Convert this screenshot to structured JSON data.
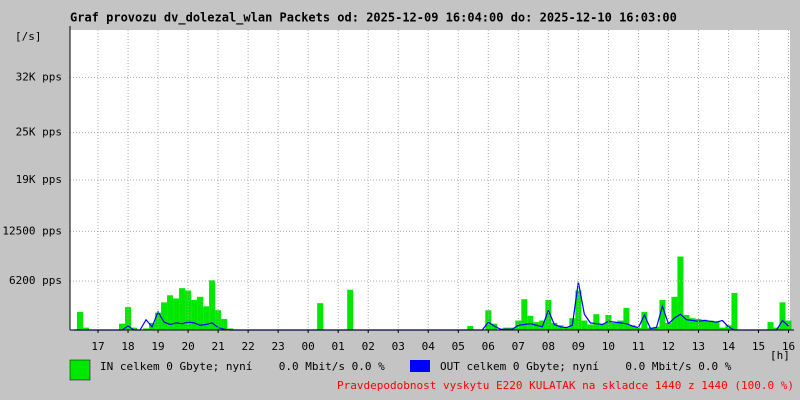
{
  "chart_data": {
    "type": "area",
    "title": "Graf provozu dv_dolezal_wlan Packets od: 2025-12-09 16:04:00 do: 2025-12-10 16:03:00",
    "ylabel": "[/s]",
    "xlabel": "[h]",
    "footnote": "Pravdepodobnost vyskytu E220 KULATAK na skladce 1440 z 1440 (100.0 %)",
    "grid": true,
    "xlim": [
      16.0667,
      40.05
    ],
    "ylim": [
      0,
      38000
    ],
    "yticks": [
      {
        "value": 6200,
        "label": "6200 pps"
      },
      {
        "value": 12500,
        "label": "12500 pps"
      },
      {
        "value": 19000,
        "label": "19K pps"
      },
      {
        "value": 25000,
        "label": "25K pps"
      },
      {
        "value": 32000,
        "label": "32K pps"
      }
    ],
    "xticks": [
      17,
      18,
      19,
      20,
      21,
      22,
      23,
      {
        "value": 24,
        "label": "00"
      },
      {
        "value": 25,
        "label": "01"
      },
      {
        "value": 26,
        "label": "02"
      },
      {
        "value": 27,
        "label": "03"
      },
      {
        "value": 28,
        "label": "04"
      },
      {
        "value": 29,
        "label": "05"
      },
      {
        "value": 30,
        "label": "06"
      },
      {
        "value": 31,
        "label": "07"
      },
      {
        "value": 32,
        "label": "08"
      },
      {
        "value": 33,
        "label": "09"
      },
      {
        "value": 34,
        "label": "10"
      },
      {
        "value": 35,
        "label": "11"
      },
      {
        "value": 36,
        "label": "12"
      },
      {
        "value": 37,
        "label": "13"
      },
      {
        "value": 38,
        "label": "14"
      },
      {
        "value": 39,
        "label": "15"
      },
      {
        "value": 40,
        "label": "16"
      }
    ],
    "x": [
      16.2,
      16.4,
      16.6,
      16.8,
      17,
      17.2,
      17.4,
      17.6,
      17.8,
      18,
      18.2,
      18.4,
      18.6,
      18.8,
      19,
      19.2,
      19.4,
      19.6,
      19.8,
      20,
      20.2,
      20.4,
      20.6,
      20.8,
      21,
      21.2,
      21.4,
      21.6,
      21.8,
      22,
      22.2,
      22.4,
      22.6,
      22.8,
      23,
      23.2,
      23.4,
      23.6,
      23.8,
      24,
      24.2,
      24.4,
      24.6,
      24.8,
      25,
      25.2,
      25.4,
      25.6,
      25.8,
      26,
      26.2,
      26.4,
      26.6,
      26.8,
      27,
      27.2,
      27.4,
      27.6,
      27.8,
      28,
      28.2,
      28.4,
      28.6,
      28.8,
      29,
      29.2,
      29.4,
      29.6,
      29.8,
      30,
      30.2,
      30.4,
      30.6,
      30.8,
      31,
      31.2,
      31.4,
      31.6,
      31.8,
      32,
      32.2,
      32.4,
      32.6,
      32.8,
      33,
      33.2,
      33.4,
      33.6,
      33.8,
      34,
      34.2,
      34.4,
      34.6,
      34.8,
      35,
      35.2,
      35.4,
      35.6,
      35.8,
      36,
      36.2,
      36.4,
      36.6,
      36.8,
      37,
      37.2,
      37.4,
      37.6,
      37.8,
      38,
      38.2,
      38.4,
      38.6,
      38.8,
      39,
      39.2,
      39.4,
      39.6,
      39.8,
      40
    ],
    "series": [
      {
        "name": "IN celkem 0 Gbyte; nyní    0.0 Mbit/s 0.0 %",
        "color": "#00e800",
        "values": [
          0,
          2300,
          300,
          0,
          0,
          0,
          0,
          0,
          800,
          2900,
          300,
          0,
          200,
          900,
          2200,
          3500,
          4400,
          4000,
          5300,
          5000,
          3800,
          4200,
          3000,
          6300,
          2500,
          1400,
          200,
          0,
          0,
          0,
          0,
          0,
          0,
          0,
          0,
          0,
          0,
          0,
          0,
          0,
          0,
          3400,
          0,
          0,
          0,
          0,
          5100,
          0,
          0,
          0,
          0,
          0,
          0,
          0,
          0,
          0,
          0,
          0,
          0,
          0,
          0,
          0,
          0,
          0,
          0,
          0,
          500,
          0,
          0,
          2500,
          800,
          0,
          300,
          300,
          1200,
          3900,
          1800,
          1000,
          1200,
          3800,
          900,
          600,
          300,
          1500,
          5000,
          1200,
          700,
          2000,
          800,
          1900,
          900,
          1200,
          2800,
          600,
          300,
          2300,
          300,
          400,
          3800,
          900,
          4200,
          9300,
          1900,
          1500,
          1400,
          1300,
          1200,
          1000,
          300,
          600,
          4700,
          0,
          0,
          0,
          0,
          0,
          1000,
          300,
          3500,
          1200
        ]
      },
      {
        "name": "OUT celkem 0 Gbyte; nyní    0.0 Mbit/s 0.0 %",
        "color": "#0000ff",
        "values": [
          0,
          0,
          0,
          0,
          0,
          0,
          0,
          0,
          0,
          500,
          0,
          0,
          1300,
          400,
          2300,
          1000,
          700,
          900,
          800,
          1000,
          900,
          600,
          700,
          900,
          300,
          100,
          0,
          0,
          0,
          0,
          0,
          0,
          0,
          0,
          0,
          0,
          0,
          0,
          0,
          0,
          0,
          0,
          0,
          0,
          0,
          0,
          0,
          0,
          0,
          0,
          0,
          0,
          0,
          0,
          0,
          0,
          0,
          0,
          0,
          0,
          0,
          0,
          0,
          0,
          0,
          0,
          0,
          0,
          0,
          1000,
          500,
          100,
          100,
          100,
          600,
          700,
          800,
          600,
          400,
          2500,
          700,
          400,
          300,
          600,
          6100,
          2000,
          900,
          800,
          700,
          1100,
          1000,
          900,
          800,
          500,
          300,
          1900,
          200,
          300,
          3000,
          800,
          1500,
          2000,
          1300,
          1200,
          1100,
          1200,
          1100,
          1000,
          1200,
          400,
          0,
          0,
          0,
          0,
          0,
          0,
          0,
          0,
          1200,
          500
        ]
      }
    ]
  }
}
